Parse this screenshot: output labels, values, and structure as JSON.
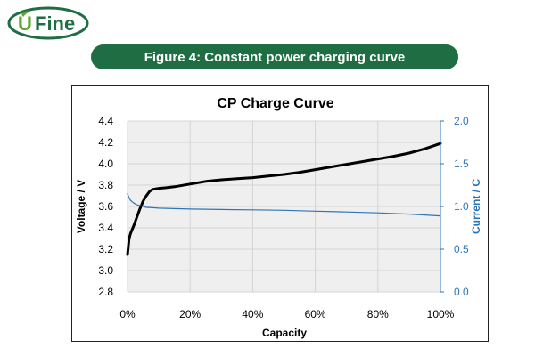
{
  "brand": {
    "name": "UFine",
    "prefix": "U",
    "suffix": "Fine",
    "color": "#1f6e43"
  },
  "banner": {
    "text": "Figure 4: Constant power charging curve",
    "bg": "#1f6e43"
  },
  "chart_data": {
    "type": "line",
    "title": "CP Charge Curve",
    "xlabel": "Capacity",
    "ylabel": "Voltage / V",
    "y2label": "Current / C",
    "xlim": [
      0,
      100
    ],
    "ylim": [
      2.8,
      4.4
    ],
    "y2lim": [
      0.0,
      2.0
    ],
    "xticks": [
      "0%",
      "20%",
      "40%",
      "60%",
      "80%",
      "100%"
    ],
    "yticks": [
      "2.8",
      "3.0",
      "3.2",
      "3.4",
      "3.6",
      "3.8",
      "4.0",
      "4.2",
      "4.4"
    ],
    "y2ticks": [
      "0.0",
      "0.5",
      "1.0",
      "1.5",
      "2.0"
    ],
    "grid": true,
    "plot_bg": "#efefef",
    "series": [
      {
        "axis": "y",
        "color": "#000000",
        "x": [
          0,
          0.5,
          1,
          2,
          3,
          4,
          5,
          6,
          7,
          8,
          10,
          12,
          15,
          20,
          25,
          30,
          35,
          40,
          45,
          50,
          55,
          60,
          65,
          70,
          75,
          80,
          85,
          90,
          95,
          100
        ],
        "values": [
          3.15,
          3.3,
          3.35,
          3.42,
          3.5,
          3.58,
          3.65,
          3.7,
          3.74,
          3.76,
          3.77,
          3.775,
          3.785,
          3.81,
          3.835,
          3.85,
          3.86,
          3.87,
          3.885,
          3.9,
          3.92,
          3.945,
          3.97,
          3.995,
          4.02,
          4.045,
          4.07,
          4.1,
          4.14,
          4.19
        ]
      },
      {
        "axis": "y2",
        "color": "#2e75b6",
        "x": [
          0,
          0.5,
          1,
          2,
          3,
          4,
          5,
          6,
          8,
          10,
          15,
          20,
          30,
          40,
          50,
          60,
          70,
          80,
          90,
          100
        ],
        "values": [
          1.15,
          1.1,
          1.07,
          1.04,
          1.02,
          1.01,
          1.0,
          0.99,
          0.985,
          0.98,
          0.975,
          0.97,
          0.965,
          0.96,
          0.955,
          0.945,
          0.935,
          0.925,
          0.91,
          0.89
        ]
      }
    ]
  }
}
